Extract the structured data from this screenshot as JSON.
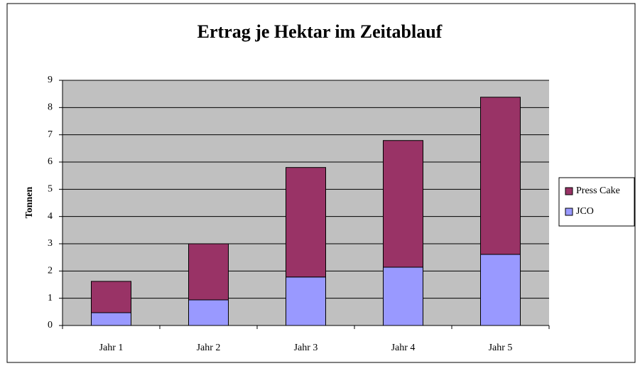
{
  "chart_data": {
    "type": "stacked_bar",
    "title": "Ertrag je Hektar im Zeitablauf",
    "y_label": "Tonnen",
    "categories": [
      "Jahr 1",
      "Jahr 2",
      "Jahr 3",
      "Jahr 4",
      "Jahr 5"
    ],
    "series": [
      {
        "name": "JCO",
        "color": "#9999ff",
        "values": [
          0.47,
          0.94,
          1.78,
          2.14,
          2.61
        ]
      },
      {
        "name": "Press Cake",
        "color": "#993366",
        "values": [
          1.15,
          2.06,
          4.02,
          4.65,
          5.77
        ]
      }
    ],
    "ylim": [
      0,
      9
    ],
    "yticks": [
      0,
      1,
      2,
      3,
      4,
      5,
      6,
      7,
      8,
      9
    ],
    "grid": true,
    "legend": "right"
  }
}
